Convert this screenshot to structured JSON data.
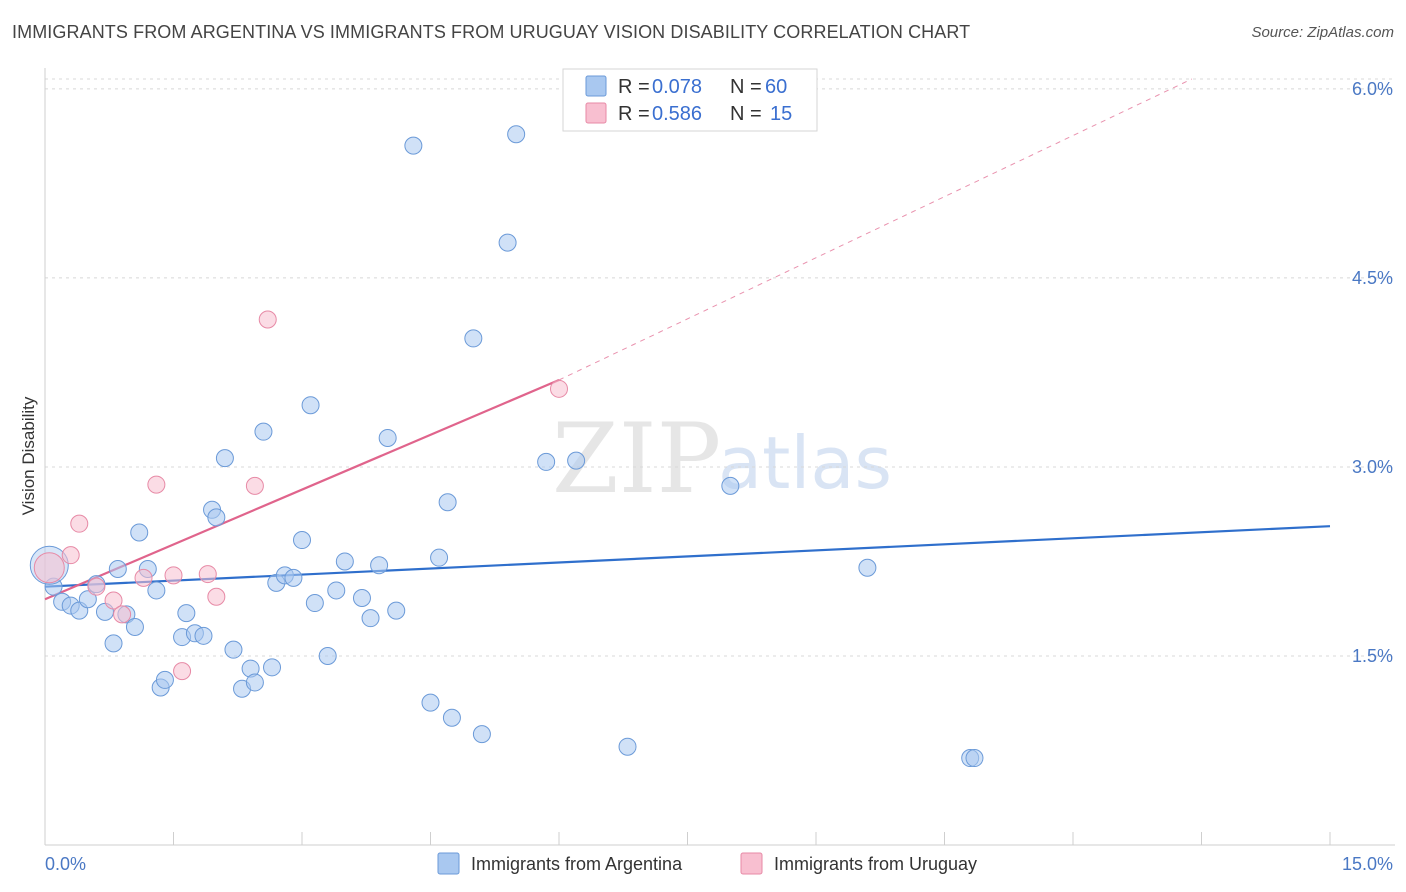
{
  "title": "IMMIGRANTS FROM ARGENTINA VS IMMIGRANTS FROM URUGUAY VISION DISABILITY CORRELATION CHART",
  "source": "Source: ZipAtlas.com",
  "watermark": {
    "zip": "ZIP",
    "atlas": "atlas"
  },
  "legend_top": {
    "series1": {
      "r_label": "R =",
      "r_value": "0.078",
      "n_label": "N =",
      "n_value": "60"
    },
    "series2": {
      "r_label": "R =",
      "r_value": "0.586",
      "n_label": "N =",
      "n_value": "15"
    }
  },
  "colors": {
    "argentina_fill": "#a9c8f0",
    "argentina_stroke": "#6b9ad8",
    "argentina_line": "#2f6fcc",
    "uruguay_fill": "#f8bfd0",
    "uruguay_stroke": "#e78aa6",
    "uruguay_line": "#e0648c",
    "grid": "#d8d8d8",
    "tick_text": "#4a78c4"
  },
  "chart_data": {
    "type": "scatter",
    "title": "IMMIGRANTS FROM ARGENTINA VS IMMIGRANTS FROM URUGUAY VISION DISABILITY CORRELATION CHART",
    "xlabel": "",
    "ylabel": "Vision Disability",
    "xlim": [
      0,
      15
    ],
    "ylim": [
      0,
      6.15
    ],
    "x_tick_labels": {
      "min": "0.0%",
      "max": "15.0%"
    },
    "y_ticks": [
      1.5,
      3.0,
      4.5,
      6.0
    ],
    "y_tick_labels": [
      "1.5%",
      "3.0%",
      "4.5%",
      "6.0%"
    ],
    "grid": true,
    "legend_position": "top-center",
    "series": [
      {
        "name": "Immigrants from Argentina",
        "R": 0.078,
        "N": 60,
        "trend": {
          "x": [
            0,
            15
          ],
          "y": [
            2.05,
            2.53
          ],
          "dashed_extension": false
        },
        "points": [
          [
            0.05,
            2.22
          ],
          [
            0.1,
            2.05
          ],
          [
            0.2,
            1.93
          ],
          [
            0.3,
            1.9
          ],
          [
            0.4,
            1.86
          ],
          [
            0.5,
            1.95
          ],
          [
            0.6,
            2.07
          ],
          [
            0.7,
            1.85
          ],
          [
            0.8,
            1.6
          ],
          [
            0.85,
            2.19
          ],
          [
            0.95,
            1.83
          ],
          [
            1.05,
            1.73
          ],
          [
            1.1,
            2.48
          ],
          [
            1.2,
            2.19
          ],
          [
            1.3,
            2.02
          ],
          [
            1.35,
            1.25
          ],
          [
            1.4,
            1.31
          ],
          [
            1.6,
            1.65
          ],
          [
            1.65,
            1.84
          ],
          [
            1.75,
            1.68
          ],
          [
            1.85,
            1.66
          ],
          [
            1.95,
            2.66
          ],
          [
            2.0,
            2.6
          ],
          [
            2.1,
            3.07
          ],
          [
            2.2,
            1.55
          ],
          [
            2.3,
            1.24
          ],
          [
            2.4,
            1.4
          ],
          [
            2.45,
            1.29
          ],
          [
            2.55,
            3.28
          ],
          [
            2.65,
            1.41
          ],
          [
            2.7,
            2.08
          ],
          [
            2.8,
            2.14
          ],
          [
            2.9,
            2.12
          ],
          [
            3.0,
            2.42
          ],
          [
            3.1,
            3.49
          ],
          [
            3.15,
            1.92
          ],
          [
            3.3,
            1.5
          ],
          [
            3.4,
            2.02
          ],
          [
            3.5,
            2.25
          ],
          [
            3.7,
            1.96
          ],
          [
            3.8,
            1.8
          ],
          [
            3.9,
            2.22
          ],
          [
            4.0,
            3.23
          ],
          [
            4.1,
            1.86
          ],
          [
            4.3,
            5.55
          ],
          [
            4.5,
            1.13
          ],
          [
            4.6,
            2.28
          ],
          [
            4.7,
            2.72
          ],
          [
            4.75,
            1.01
          ],
          [
            5.1,
            0.88
          ],
          [
            5.0,
            4.02
          ],
          [
            5.4,
            4.78
          ],
          [
            5.5,
            5.64
          ],
          [
            5.85,
            3.04
          ],
          [
            6.2,
            3.05
          ],
          [
            6.8,
            0.78
          ],
          [
            8.0,
            2.85
          ],
          [
            9.6,
            2.2
          ],
          [
            10.8,
            0.69
          ],
          [
            10.85,
            0.69
          ]
        ]
      },
      {
        "name": "Immigrants from Uruguay",
        "R": 0.586,
        "N": 15,
        "trend": {
          "x": [
            0,
            6.0,
            15
          ],
          "y": [
            1.95,
            3.69,
            6.6
          ],
          "solid_until_x": 6.0
        },
        "points": [
          [
            0.05,
            2.2
          ],
          [
            0.3,
            2.3
          ],
          [
            0.4,
            2.55
          ],
          [
            0.6,
            2.05
          ],
          [
            0.8,
            1.94
          ],
          [
            0.9,
            1.83
          ],
          [
            1.15,
            2.12
          ],
          [
            1.3,
            2.86
          ],
          [
            1.5,
            2.14
          ],
          [
            1.6,
            1.38
          ],
          [
            1.9,
            2.15
          ],
          [
            2.0,
            1.97
          ],
          [
            2.45,
            2.85
          ],
          [
            2.6,
            4.17
          ],
          [
            6.0,
            3.62
          ]
        ]
      }
    ]
  },
  "ylabel": "Vision Disability",
  "x_tick_min": "0.0%",
  "x_tick_max": "15.0%",
  "bottom_legend": {
    "argentina": "Immigrants from Argentina",
    "uruguay": "Immigrants from Uruguay"
  }
}
